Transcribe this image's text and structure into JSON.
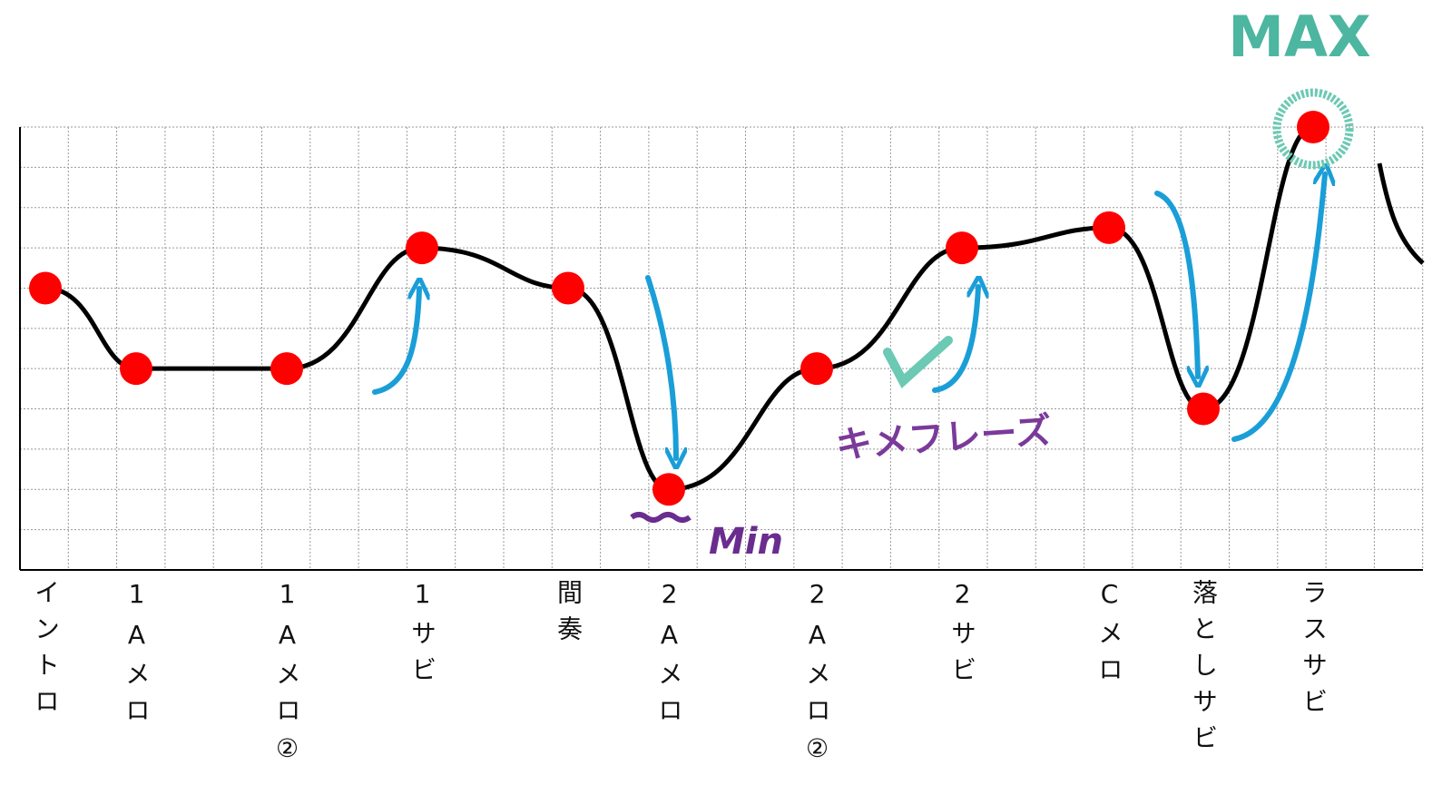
{
  "chart_data": {
    "type": "line",
    "categories": [
      "イントロ",
      "1Aメロ",
      "1Aメロ②",
      "1サビ",
      "間奏",
      "2Aメロ",
      "2Aメロ②",
      "2サビ",
      "Cメロ",
      "落としサビ",
      "ラスサビ"
    ],
    "values": [
      7,
      5,
      5,
      8,
      7,
      2,
      5,
      8,
      8.5,
      4,
      11
    ],
    "color": "#000000",
    "marker_color": "#ff0000",
    "ylim": [
      0,
      11
    ],
    "yticks": [
      0,
      1,
      2,
      3,
      4,
      5,
      6,
      7,
      8,
      9,
      10,
      11
    ],
    "grid": true,
    "annotations": [
      "MAX",
      "Min",
      "キメフレーズ"
    ]
  }
}
